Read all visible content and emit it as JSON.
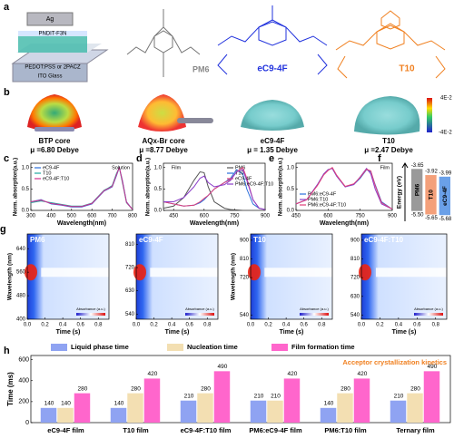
{
  "panels": {
    "a": {
      "letter": "a",
      "device_layers": [
        "Ag",
        "PNDIT-F3N",
        "PEDOT:PSS or 2PACZ",
        "ITO Glass"
      ],
      "molecules": [
        "PM6",
        "eC9-4F",
        "T10"
      ]
    },
    "b": {
      "letter": "b",
      "items": [
        {
          "name": "BTP core",
          "dipole": "μ =6.80 Debye"
        },
        {
          "name": "AQx-Br core",
          "dipole": "μ =8.77 Debye"
        },
        {
          "name": "eC9-4F",
          "dipole": "μ = 1.35 Debye"
        },
        {
          "name": "T10",
          "dipole": "μ =2.47 Debye"
        }
      ],
      "colorbar": [
        "4E-2",
        "-4E-2"
      ]
    }
  },
  "chart_data": [
    {
      "type": "line",
      "panel": "c",
      "annotation": "Solution",
      "legend": "upper left",
      "xlabel": "Wavelength(nm)",
      "ylabel": "Norm. absorption(a.u.)",
      "x": [
        300,
        350,
        400,
        450,
        500,
        550,
        600,
        630,
        660,
        680,
        700,
        720,
        735,
        750,
        770,
        800
      ],
      "xlim": [
        300,
        800
      ],
      "xticks": [
        300,
        400,
        500,
        600,
        700,
        800
      ],
      "ylim": [
        0,
        1.1
      ],
      "yticks": [
        {
          "value": 0,
          "label": "0.0"
        },
        {
          "value": 0.5,
          "label": "0.5"
        },
        {
          "value": 1,
          "label": "1.0"
        }
      ],
      "series": [
        {
          "name": "eC9-4F",
          "color": "#2a6fdb",
          "values": [
            0.2,
            0.25,
            0.15,
            0.12,
            0.08,
            0.08,
            0.15,
            0.3,
            0.45,
            0.5,
            0.55,
            0.8,
            1.0,
            0.7,
            0.2,
            0.02
          ]
        },
        {
          "name": "T10",
          "color": "#20a8a0",
          "values": [
            0.18,
            0.22,
            0.18,
            0.14,
            0.1,
            0.1,
            0.17,
            0.32,
            0.47,
            0.52,
            0.58,
            0.85,
            1.0,
            0.65,
            0.18,
            0.02
          ]
        },
        {
          "name": "eC9-4F:T10",
          "color": "#d02f8c",
          "values": [
            0.2,
            0.24,
            0.16,
            0.13,
            0.09,
            0.09,
            0.16,
            0.31,
            0.46,
            0.51,
            0.56,
            0.82,
            1.0,
            0.68,
            0.19,
            0.02
          ]
        }
      ]
    },
    {
      "type": "line",
      "panel": "d",
      "annotation": "Film",
      "legend": "upper right",
      "xlabel": "Wavelength(nm)",
      "ylabel": "Norm. absorption(a.u.)",
      "x": [
        400,
        450,
        500,
        550,
        580,
        600,
        620,
        650,
        700,
        730,
        760,
        790,
        810,
        840,
        870,
        900
      ],
      "xlim": [
        400,
        900
      ],
      "xticks": [
        450,
        600,
        750,
        900
      ],
      "ylim": [
        0,
        1.1
      ],
      "yticks": [
        {
          "value": 0,
          "label": "0.0"
        },
        {
          "value": 0.5,
          "label": "0.5"
        },
        {
          "value": 1,
          "label": "1.0"
        }
      ],
      "series": [
        {
          "name": "PM6",
          "color": "#555555",
          "values": [
            0.05,
            0.1,
            0.3,
            0.7,
            0.9,
            0.88,
            0.55,
            0.2,
            0.05,
            0.02,
            0.01,
            0,
            0,
            0,
            0,
            0
          ]
        },
        {
          "name": "T10",
          "color": "#2a6fdb",
          "values": [
            0.2,
            0.15,
            0.1,
            0.12,
            0.18,
            0.25,
            0.35,
            0.5,
            0.65,
            0.75,
            0.95,
            0.85,
            0.5,
            0.15,
            0.05,
            0.02
          ]
        },
        {
          "name": "eC9-4F",
          "color": "#e0407a",
          "values": [
            0.2,
            0.15,
            0.1,
            0.12,
            0.2,
            0.28,
            0.35,
            0.5,
            0.65,
            0.72,
            0.9,
            1.0,
            0.75,
            0.25,
            0.05,
            0.02
          ]
        },
        {
          "name": "PM6:eC9-4F:T10",
          "color": "#8a3cc8",
          "values": [
            0.2,
            0.2,
            0.3,
            0.55,
            0.75,
            0.8,
            0.65,
            0.55,
            0.6,
            0.7,
            0.9,
            0.95,
            0.7,
            0.25,
            0.05,
            0.02
          ]
        }
      ]
    },
    {
      "type": "line",
      "panel": "e",
      "annotation": "Film",
      "legend": "lower left",
      "xlabel": "Wavelength(nm)",
      "ylabel": "Norm. absorption(a.u.)",
      "x": [
        450,
        500,
        550,
        580,
        600,
        620,
        640,
        680,
        720,
        750,
        780,
        800,
        820,
        850,
        900
      ],
      "xlim": [
        450,
        900
      ],
      "xticks": [
        450,
        600,
        750,
        900
      ],
      "ylim": [
        0,
        1.1
      ],
      "yticks": [
        {
          "value": 0,
          "label": "0.0"
        },
        {
          "value": 0.5,
          "label": "0.5"
        },
        {
          "value": 1,
          "label": "1.0"
        }
      ],
      "series": [
        {
          "name": "PM6:eC9-4F",
          "color": "#2a6fdb",
          "values": [
            0.15,
            0.25,
            0.6,
            0.85,
            0.95,
            0.98,
            0.8,
            0.55,
            0.6,
            0.75,
            0.95,
            0.9,
            0.6,
            0.2,
            0.03
          ]
        },
        {
          "name": "PM6:T10",
          "color": "#8a3cc8",
          "values": [
            0.15,
            0.25,
            0.6,
            0.85,
            0.95,
            0.98,
            0.8,
            0.55,
            0.6,
            0.78,
            0.98,
            0.85,
            0.5,
            0.15,
            0.03
          ]
        },
        {
          "name": "PM6:eC9-4F:T10",
          "color": "#e0407a",
          "values": [
            0.15,
            0.25,
            0.58,
            0.83,
            0.93,
            1.0,
            0.82,
            0.56,
            0.62,
            0.77,
            0.96,
            0.92,
            0.58,
            0.18,
            0.03
          ]
        }
      ]
    },
    {
      "type": "energy",
      "panel": "f",
      "ylabel": "Energy (eV)",
      "ylim": [
        -5.95,
        -3.4
      ],
      "series": [
        {
          "name": "PM6",
          "color": "#9a9a9a",
          "values": [
            -3.65,
            -5.5
          ],
          "value_labels": [
            "-3.65",
            "-5.50"
          ]
        },
        {
          "name": "T10",
          "color": "#f4a07a",
          "values": [
            -3.92,
            -5.65
          ],
          "value_labels": [
            "-3.92",
            "-5.65"
          ]
        },
        {
          "name": "eC9-4F",
          "color": "#6aa0e8",
          "values": [
            -3.99,
            -5.68
          ],
          "value_labels": [
            "-3.99",
            "-5.68"
          ]
        }
      ]
    },
    {
      "type": "heatmap",
      "panel": "g",
      "title": "PM6",
      "xlabel": "Time (s)",
      "ylabel": "Wavelength (nm)",
      "colorbar_label": "Absorbance (a.u.)",
      "xlim": [
        0,
        0.92
      ],
      "xticks": [
        {
          "value": 0,
          "label": "0.0"
        },
        0.2,
        0.4,
        0.6,
        0.8
      ],
      "ylim": [
        400,
        690
      ],
      "yticks": [
        400,
        480,
        560,
        640
      ]
    },
    {
      "type": "heatmap",
      "title": "eC9-4F",
      "xlabel": "Time (s)",
      "colorbar_label": "Absorbance (a.u.)",
      "xlim": [
        0,
        0.92
      ],
      "xticks": [
        {
          "value": 0,
          "label": "0.0"
        },
        0.2,
        0.4,
        0.6,
        0.8
      ],
      "ylim": [
        520,
        850
      ],
      "yticks": [
        540,
        630,
        720,
        810
      ]
    },
    {
      "type": "heatmap",
      "title": "T10",
      "xlabel": "Time (s)",
      "ylabel": "Wavelength (nm)",
      "colorbar_label": "Absorbance (a.u.)",
      "xlim": [
        0,
        0.92
      ],
      "xticks": [
        {
          "value": 0,
          "label": "0.0"
        },
        0.2,
        0.4,
        0.6,
        0.8
      ],
      "ylim": [
        520,
        930
      ],
      "yticks": [
        540,
        720,
        810,
        900
      ]
    },
    {
      "type": "heatmap",
      "title": "eC9-4F:T10",
      "xlabel": "Time (s)",
      "colorbar_label": "Absorbance (a.u.)",
      "xlim": [
        0,
        0.92
      ],
      "xticks": [
        {
          "value": 0,
          "label": "0.0"
        },
        0.2,
        0.4,
        0.6,
        0.8
      ],
      "ylim": [
        520,
        930
      ],
      "yticks": [
        540,
        630,
        720,
        810,
        900
      ]
    },
    {
      "type": "bar",
      "panel": "h",
      "ylabel": "Time (ms)",
      "annotation": "Acceptor crystallization kinetics",
      "legend": "top",
      "categories": [
        "eC9-4F film",
        "T10 film",
        "eC9-4F:T10 film",
        "PM6:eC9-4F film",
        "PM6:T10 film",
        "Ternary film"
      ],
      "ylim": [
        0,
        640
      ],
      "yticks": [
        0,
        200,
        400,
        600
      ],
      "series": [
        {
          "name": "Liquid phase time",
          "color": "#8fa3f2",
          "values": [
            140,
            140,
            210,
            210,
            140,
            210
          ]
        },
        {
          "name": "Nucleation time",
          "color": "#f3dfb2",
          "values": [
            140,
            280,
            280,
            210,
            280,
            280
          ]
        },
        {
          "name": "Film formation time",
          "color": "#ff66cc",
          "values": [
            280,
            420,
            490,
            420,
            420,
            490
          ]
        }
      ]
    }
  ]
}
